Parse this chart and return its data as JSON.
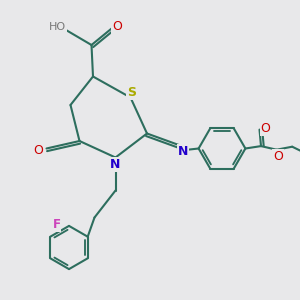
{
  "background_color": "#e8e8ea",
  "bond_color": "#2d6e5e",
  "S_color": "#aaaa00",
  "N_color": "#2200cc",
  "O_color": "#cc0000",
  "F_color": "#cc44bb",
  "line_width": 1.5,
  "figsize": [
    3.0,
    3.0
  ],
  "dpi": 100,
  "xlim": [
    0,
    10
  ],
  "ylim": [
    0,
    10
  ]
}
